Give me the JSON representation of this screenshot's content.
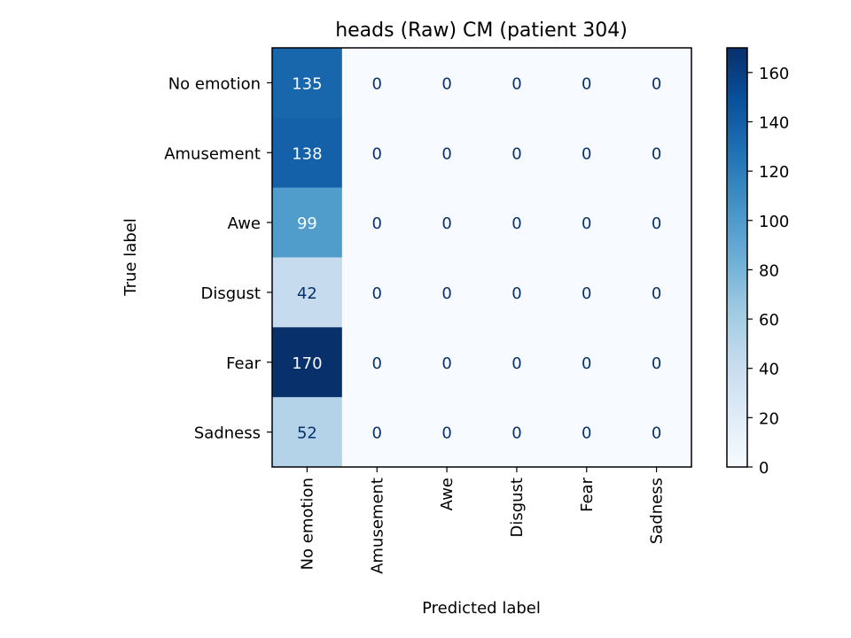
{
  "chart_data": {
    "type": "heatmap",
    "title": "heads (Raw) CM (patient 304)",
    "xlabel": "Predicted label",
    "ylabel": "True label",
    "x_categories": [
      "No emotion",
      "Amusement",
      "Awe",
      "Disgust",
      "Fear",
      "Sadness"
    ],
    "y_categories": [
      "No emotion",
      "Amusement",
      "Awe",
      "Disgust",
      "Fear",
      "Sadness"
    ],
    "matrix": [
      [
        135,
        0,
        0,
        0,
        0,
        0
      ],
      [
        138,
        0,
        0,
        0,
        0,
        0
      ],
      [
        99,
        0,
        0,
        0,
        0,
        0
      ],
      [
        42,
        0,
        0,
        0,
        0,
        0
      ],
      [
        170,
        0,
        0,
        0,
        0,
        0
      ],
      [
        52,
        0,
        0,
        0,
        0,
        0
      ]
    ],
    "colormap": "Blues",
    "colorbar": {
      "range": [
        0,
        170
      ],
      "ticks": [
        0,
        20,
        40,
        60,
        80,
        100,
        120,
        140,
        160
      ]
    },
    "colors": {
      "low": "#f7fbff",
      "high": "#08306b",
      "text_dark": "#08306b",
      "text_light": "#f7fbff"
    }
  }
}
